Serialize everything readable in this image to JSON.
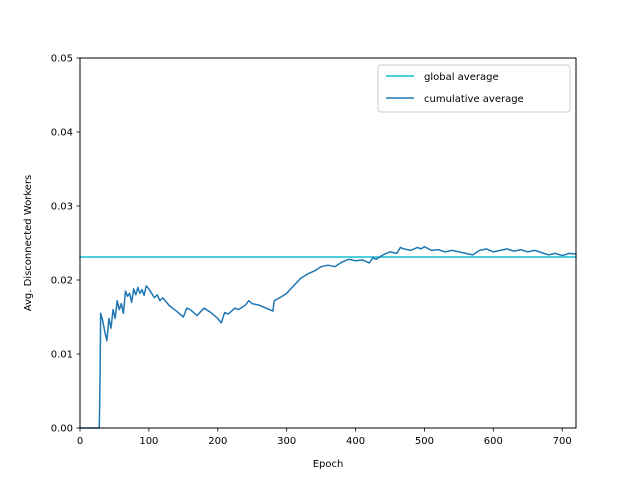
{
  "chart_data": {
    "type": "line",
    "xlabel": "Epoch",
    "ylabel": "Avg. Disconnected Workers",
    "xlim": [
      0,
      720
    ],
    "ylim": [
      0.0,
      0.05
    ],
    "x_ticks": [
      "0",
      "100",
      "200",
      "300",
      "400",
      "500",
      "600",
      "700"
    ],
    "y_ticks": [
      "0.00",
      "0.01",
      "0.02",
      "0.03",
      "0.04",
      "0.05"
    ],
    "grid": false,
    "legend_position": "top-right",
    "series": [
      {
        "name": "global average",
        "color": "#17becf",
        "x": [
          0,
          720
        ],
        "y": [
          0.0231,
          0.0231
        ]
      },
      {
        "name": "cumulative average",
        "color": "#1f77b4",
        "x": [
          0,
          28,
          29,
          30,
          33,
          36,
          39,
          42,
          45,
          48,
          51,
          54,
          57,
          60,
          63,
          66,
          69,
          72,
          75,
          78,
          81,
          84,
          87,
          90,
          93,
          96,
          100,
          104,
          108,
          112,
          116,
          120,
          130,
          140,
          150,
          155,
          160,
          170,
          180,
          190,
          200,
          205,
          210,
          215,
          220,
          225,
          230,
          240,
          245,
          250,
          260,
          270,
          280,
          282,
          290,
          300,
          310,
          320,
          330,
          340,
          350,
          360,
          370,
          380,
          390,
          395,
          400,
          410,
          420,
          425,
          430,
          440,
          450,
          460,
          465,
          470,
          480,
          490,
          495,
          500,
          510,
          520,
          530,
          540,
          550,
          560,
          570,
          580,
          590,
          600,
          610,
          620,
          630,
          640,
          650,
          660,
          670,
          680,
          690,
          700,
          710,
          720
        ],
        "y": [
          0.0,
          0.0,
          0.006,
          0.0155,
          0.0145,
          0.013,
          0.0118,
          0.0148,
          0.0135,
          0.016,
          0.0148,
          0.0172,
          0.016,
          0.0168,
          0.0155,
          0.0185,
          0.0178,
          0.0182,
          0.017,
          0.0188,
          0.018,
          0.019,
          0.0182,
          0.0187,
          0.0179,
          0.0192,
          0.0188,
          0.0182,
          0.0176,
          0.018,
          0.0172,
          0.0176,
          0.0165,
          0.0158,
          0.015,
          0.0162,
          0.016,
          0.0152,
          0.0162,
          0.0156,
          0.0148,
          0.0142,
          0.0156,
          0.0154,
          0.0158,
          0.0162,
          0.016,
          0.0166,
          0.0172,
          0.0168,
          0.0166,
          0.0162,
          0.0158,
          0.0172,
          0.0176,
          0.0182,
          0.0192,
          0.0202,
          0.0208,
          0.0212,
          0.0218,
          0.022,
          0.0218,
          0.0224,
          0.0228,
          0.0227,
          0.0226,
          0.0227,
          0.0223,
          0.023,
          0.0228,
          0.0234,
          0.0238,
          0.0236,
          0.0244,
          0.0242,
          0.024,
          0.0244,
          0.0242,
          0.0245,
          0.024,
          0.0241,
          0.0238,
          0.024,
          0.0238,
          0.0236,
          0.0234,
          0.024,
          0.0242,
          0.0238,
          0.024,
          0.0242,
          0.0239,
          0.0241,
          0.0238,
          0.024,
          0.0237,
          0.0234,
          0.0236,
          0.0233,
          0.0236,
          0.0235
        ]
      }
    ]
  }
}
